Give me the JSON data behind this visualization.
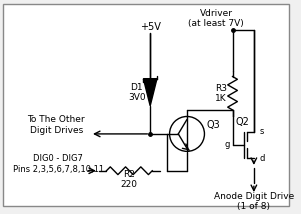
{
  "bg_color": "#f0f0f0",
  "border_color": "#888888",
  "line_color": "#000000",
  "labels": {
    "vdriver": "Vdriver\n(at least 7V)",
    "plus5v": "+5V",
    "d1": "D1\n3V0",
    "r3": "R3\n1K",
    "q2": "Q2",
    "q3": "Q3",
    "r2": "R2\n220",
    "to_other": "To The Other\nDigit Drives",
    "dig": "DIG0 - DIG7\nPins 2,3,5,6,7,8,10,11",
    "anode": "Anode Digit Drive\n(1 of 8)",
    "g": "g",
    "s": "s",
    "d": "d"
  }
}
